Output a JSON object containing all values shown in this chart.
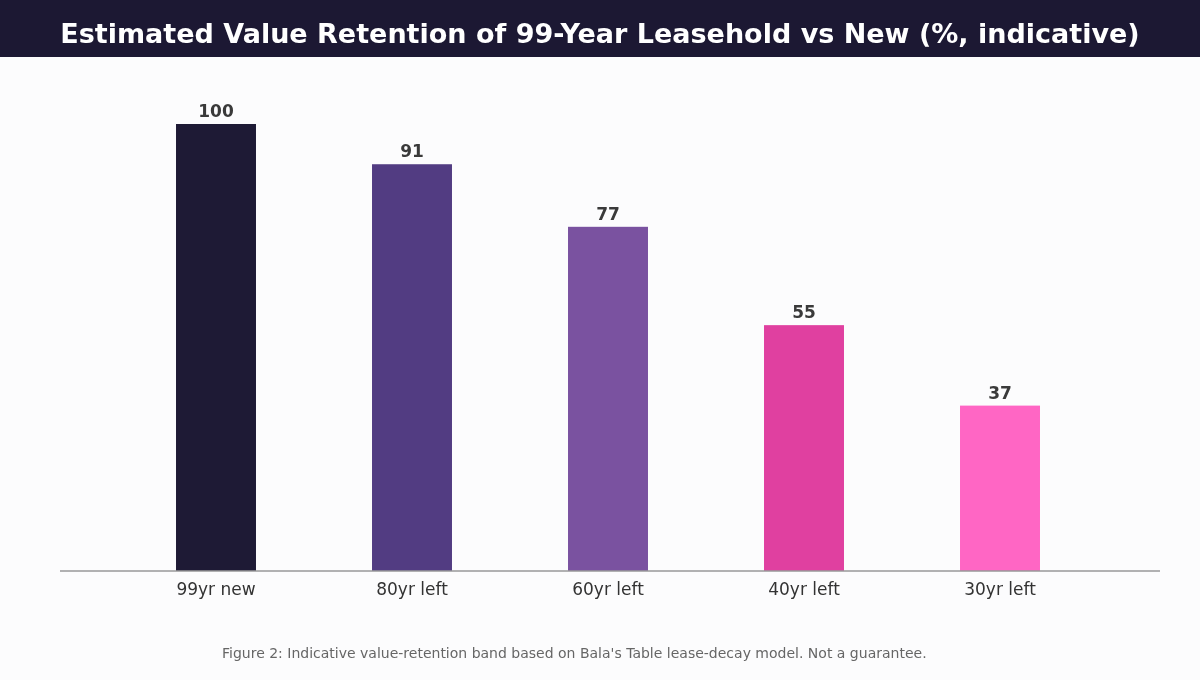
{
  "chart_data": {
    "type": "bar",
    "title": "Estimated Value Retention of 99-Year Leasehold vs New (%, indicative)",
    "categories": [
      "99yr new",
      "80yr left",
      "60yr left",
      "40yr left",
      "30yr left"
    ],
    "values": [
      100,
      91,
      77,
      55,
      37
    ],
    "colors": [
      "#1e1a35",
      "#523c82",
      "#7a52a0",
      "#e040a0",
      "#ff66c4"
    ],
    "data_labels": true,
    "grid": false,
    "annotations": [
      "Figure 2: Indicative value-retention band based on Bala's Table lease-decay model. Not a guarantee."
    ]
  }
}
